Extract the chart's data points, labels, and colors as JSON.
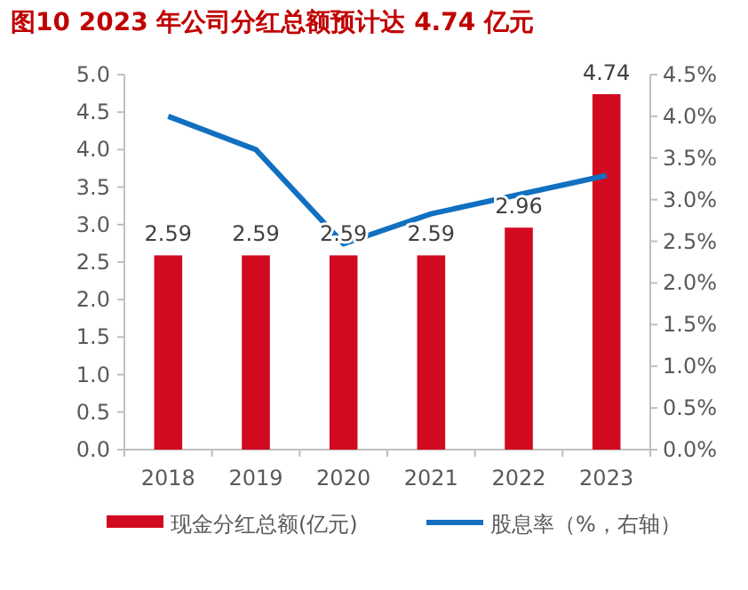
{
  "chart_data": {
    "type": "bar",
    "title": "图10  2023 年公司分红总额预计达 4.74 亿元",
    "categories": [
      "2018",
      "2019",
      "2020",
      "2021",
      "2022",
      "2023"
    ],
    "series": [
      {
        "name": "现金分红总额(亿元)",
        "color": "#d20a20",
        "values": [
          2.59,
          2.59,
          2.59,
          2.59,
          2.96,
          4.74
        ],
        "value_labels": [
          "2.59",
          "2.59",
          "2.59",
          "2.59",
          "2.96",
          "4.74"
        ]
      },
      {
        "name": "股息率（%，右轴）",
        "type": "line",
        "axis": "y2",
        "color": "#1170c0",
        "values": [
          4.0,
          3.6,
          2.47,
          2.83,
          3.06,
          3.29
        ]
      }
    ],
    "ylim": [
      0,
      5
    ],
    "yticks": [
      {
        "value": 0,
        "label": "0.0"
      },
      {
        "value": 0.5,
        "label": "0.5"
      },
      {
        "value": 1,
        "label": "1.0"
      },
      {
        "value": 1.5,
        "label": "1.5"
      },
      {
        "value": 2,
        "label": "2.0"
      },
      {
        "value": 2.5,
        "label": "2.5"
      },
      {
        "value": 3,
        "label": "3.0"
      },
      {
        "value": 3.5,
        "label": "3.5"
      },
      {
        "value": 4,
        "label": "4.0"
      },
      {
        "value": 4.5,
        "label": "4.5"
      },
      {
        "value": 5,
        "label": "5.0"
      }
    ],
    "y2lim": [
      0,
      4.5
    ],
    "y2ticks": [
      {
        "value": 0,
        "label": "0.0%"
      },
      {
        "value": 0.5,
        "label": "0.5%"
      },
      {
        "value": 1,
        "label": "1.0%"
      },
      {
        "value": 1.5,
        "label": "1.5%"
      },
      {
        "value": 2,
        "label": "2.0%"
      },
      {
        "value": 2.5,
        "label": "2.5%"
      },
      {
        "value": 3,
        "label": "3.0%"
      },
      {
        "value": 3.5,
        "label": "3.5%"
      },
      {
        "value": 4,
        "label": "4.0%"
      },
      {
        "value": 4.5,
        "label": "4.5%"
      }
    ],
    "legend": "bottom"
  }
}
